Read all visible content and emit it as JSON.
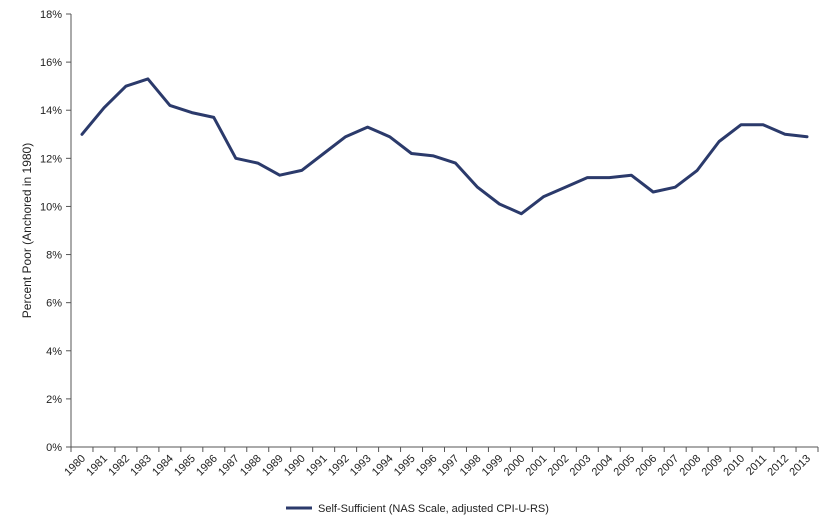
{
  "chart_data": {
    "type": "line",
    "title": "",
    "xlabel": "",
    "ylabel": "Percent Poor (Anchored in 1980)",
    "ylim": [
      0,
      18
    ],
    "y_ticks": [
      "0%",
      "2%",
      "4%",
      "6%",
      "8%",
      "10%",
      "12%",
      "14%",
      "16%",
      "18%"
    ],
    "y_tick_values": [
      0,
      2,
      4,
      6,
      8,
      10,
      12,
      14,
      16,
      18
    ],
    "grid": false,
    "legend_position": "bottom",
    "categories": [
      "1980",
      "1981",
      "1982",
      "1983",
      "1984",
      "1985",
      "1986",
      "1987",
      "1988",
      "1989",
      "1990",
      "1991",
      "1992",
      "1993",
      "1994",
      "1995",
      "1996",
      "1997",
      "1998",
      "1999",
      "2000",
      "2001",
      "2002",
      "2003",
      "2004",
      "2005",
      "2006",
      "2007",
      "2008",
      "2009",
      "2010",
      "2011",
      "2012",
      "2013"
    ],
    "series": [
      {
        "name": "Self-Sufficient (NAS Scale, adjusted CPI-U-RS)",
        "color": "#2b3a6b",
        "values": [
          13.0,
          14.1,
          15.0,
          15.3,
          14.2,
          13.9,
          13.7,
          12.0,
          11.8,
          11.3,
          11.5,
          12.2,
          12.9,
          13.3,
          12.9,
          12.2,
          12.1,
          11.8,
          10.8,
          10.1,
          9.7,
          10.4,
          10.8,
          11.2,
          11.2,
          11.3,
          10.6,
          10.8,
          11.5,
          12.7,
          13.4,
          13.4,
          13.0,
          12.9
        ]
      }
    ]
  }
}
